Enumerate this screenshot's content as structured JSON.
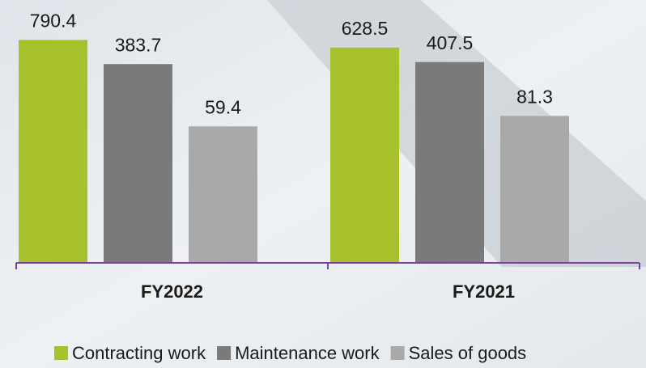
{
  "chart_data": {
    "type": "bar",
    "categories": [
      "FY2022",
      "FY2021"
    ],
    "series": [
      {
        "name": "Contracting work",
        "color": "#a6c12c",
        "values": [
          790.4,
          628.5
        ]
      },
      {
        "name": "Maintenance work",
        "color": "#7a7a7a",
        "values": [
          383.7,
          407.5
        ]
      },
      {
        "name": "Sales of goods",
        "color": "#a9a9a9",
        "values": [
          59.4,
          81.3
        ]
      }
    ],
    "ylim": [
      1,
      2000
    ],
    "log_scale": true,
    "axis_color": "#7b3fa0"
  }
}
